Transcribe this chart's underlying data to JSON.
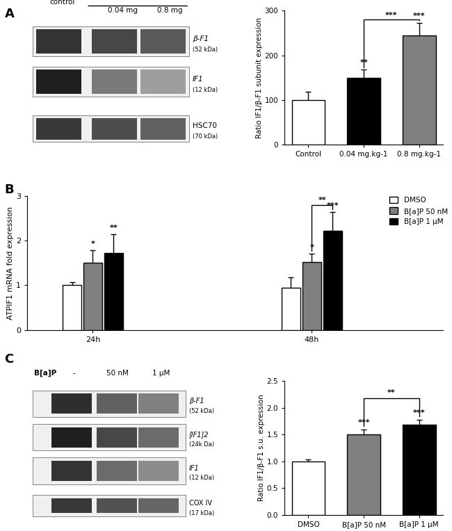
{
  "panel_A": {
    "label": "A",
    "bar_categories": [
      "Control",
      "0.04 mg.kg⁻¹",
      "0.8 mg.kg⁻¹"
    ],
    "bar_categories_display": [
      "Control",
      "0.04 mg.kg-1",
      "0.8 mg.kg-1"
    ],
    "bar_values": [
      100,
      150,
      245
    ],
    "bar_errors": [
      18,
      18,
      28
    ],
    "bar_colors": [
      "white",
      "black",
      "#808080"
    ],
    "bar_edge_colors": [
      "black",
      "black",
      "black"
    ],
    "ylabel": "Ratio IF1/β-F1 subunit expression",
    "ylim": [
      0,
      300
    ],
    "yticks": [
      0,
      100,
      200,
      300
    ],
    "sig_above_bars": [
      "",
      "**",
      "***"
    ],
    "sig_bracket": {
      "from": 1,
      "to": 2,
      "label": "***"
    }
  },
  "panel_B": {
    "label": "B",
    "groups": [
      "24h",
      "48h"
    ],
    "bar_labels": [
      "DMSO",
      "B[a]P 50 nM",
      "B[a]P 1 μM"
    ],
    "bar_colors": [
      "white",
      "#808080",
      "black"
    ],
    "bar_edge_colors": [
      "black",
      "black",
      "black"
    ],
    "values_24h": [
      1.0,
      1.5,
      1.72
    ],
    "errors_24h": [
      0.06,
      0.28,
      0.42
    ],
    "values_48h": [
      0.95,
      1.52,
      2.22
    ],
    "errors_48h": [
      0.22,
      0.18,
      0.42
    ],
    "sig_24h": [
      "",
      "*",
      "**"
    ],
    "sig_48h": [
      "",
      "*",
      "***"
    ],
    "sig_bracket_48h": {
      "from": 1,
      "to": 2,
      "label": "**"
    },
    "ylabel": "ATPIF1 mRNA fold expression",
    "ylim": [
      0,
      3
    ],
    "yticks": [
      0,
      1,
      2,
      3
    ]
  },
  "panel_C": {
    "label": "C",
    "bar_categories": [
      "DMSO",
      "B[a]P 50 nM",
      "B[a]P 1 μM"
    ],
    "bar_values": [
      1.0,
      1.5,
      1.68
    ],
    "bar_errors": [
      0.04,
      0.1,
      0.1
    ],
    "bar_colors": [
      "white",
      "#808080",
      "black"
    ],
    "bar_edge_colors": [
      "black",
      "black",
      "black"
    ],
    "ylabel": "Ratio IF1/β-F1 s.u. expression",
    "ylim": [
      0,
      2.5
    ],
    "yticks": [
      0.0,
      0.5,
      1.0,
      1.5,
      2.0,
      2.5
    ],
    "sig_above_bars": [
      "",
      "***",
      "***"
    ],
    "sig_bracket": {
      "from": 1,
      "to": 2,
      "label": "**"
    }
  }
}
